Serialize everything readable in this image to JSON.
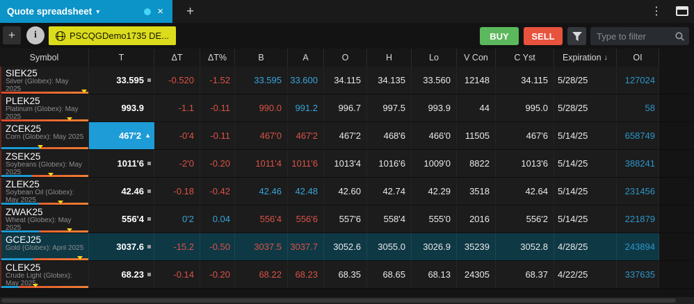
{
  "window": {
    "tab_title": "Quote spreadsheet",
    "account_button": "PSCQGDemo1735 DE..."
  },
  "toolbar": {
    "buy_label": "BUY",
    "sell_label": "SELL",
    "filter_placeholder": "Type to filter"
  },
  "icons": {
    "caret_down": "▾",
    "close": "×",
    "new_tab": "+",
    "kebab": "⋮",
    "add": "+",
    "info": "i",
    "sort_desc": "↓"
  },
  "colors": {
    "tab_accent": "#0c93c7",
    "buy_green": "#5cb85c",
    "sell_red": "#e8533e",
    "account_yellow": "#dcdc1d",
    "down_red": "#dc5247",
    "up_cyan": "#38a5da",
    "oi_cyan": "#2d96c9",
    "highlight_cell": "#1e9cd7",
    "selected_row": "#0f3845",
    "bar_cyan": "#1b9bd4",
    "bar_marker_yellow": "#ffd41f"
  },
  "table": {
    "columns": [
      "Symbol",
      "T",
      "ΔT",
      "ΔT%",
      "B",
      "A",
      "O",
      "H",
      "Lo",
      "V Con",
      "C Yst",
      "Expiration",
      "OI"
    ],
    "sorted_column": "Expiration",
    "rows": [
      {
        "symbol": "SIEK25",
        "description": "Silver (Globex): May 2025",
        "t": "33.595",
        "t_indicator": "square",
        "t_highlight": false,
        "selected": false,
        "dt": "-0.520",
        "dtp": "-1.52",
        "dt_dir": "down",
        "b": "33.595",
        "b_dir": "up",
        "a": "33.600",
        "a_dir": "up",
        "o": "34.115",
        "h": "34.135",
        "lo": "33.560",
        "vcon": "12148",
        "cyst": "34.115",
        "exp": "5/28/25",
        "oi": "127024",
        "bar": {
          "cyan_pct": 0,
          "marker_pct": 95
        }
      },
      {
        "symbol": "PLEK25",
        "description": "Platinum (Globex): May 2025",
        "t": "993.9",
        "t_indicator": "none",
        "t_highlight": false,
        "selected": false,
        "dt": "-1.1",
        "dtp": "-0.11",
        "dt_dir": "down",
        "b": "990.0",
        "b_dir": "down",
        "a": "991.2",
        "a_dir": "up",
        "o": "996.7",
        "h": "997.5",
        "lo": "993.9",
        "vcon": "44",
        "cyst": "995.0",
        "exp": "5/28/25",
        "oi": "58",
        "bar": {
          "cyan_pct": 0,
          "marker_pct": 78
        }
      },
      {
        "symbol": "ZCEK25",
        "description": "Corn (Globex): May 2025",
        "t": "467'2",
        "t_indicator": "triangle",
        "t_highlight": true,
        "selected": false,
        "dt": "-0'4",
        "dtp": "-0.11",
        "dt_dir": "down",
        "b": "467'0",
        "b_dir": "down",
        "a": "467'2",
        "a_dir": "down",
        "o": "467'2",
        "h": "468'6",
        "lo": "466'0",
        "vcon": "11505",
        "cyst": "467'6",
        "exp": "5/14/25",
        "oi": "658749",
        "bar": {
          "cyan_pct": 44,
          "marker_pct": 45
        }
      },
      {
        "symbol": "ZSEK25",
        "description": "Soybeans (Globex): May 2025",
        "t": "1011'6",
        "t_indicator": "square",
        "t_highlight": false,
        "selected": false,
        "dt": "-2'0",
        "dtp": "-0.20",
        "dt_dir": "down",
        "b": "1011'4",
        "b_dir": "down",
        "a": "1011'6",
        "a_dir": "down",
        "o": "1013'4",
        "h": "1016'6",
        "lo": "1009'0",
        "vcon": "8822",
        "cyst": "1013'6",
        "exp": "5/14/25",
        "oi": "388241",
        "bar": {
          "cyan_pct": 35,
          "marker_pct": 57
        }
      },
      {
        "symbol": "ZLEK25",
        "description": "Soybean Oil (Globex): May 2025",
        "t": "42.46",
        "t_indicator": "square",
        "t_highlight": false,
        "selected": false,
        "dt": "-0.18",
        "dtp": "-0.42",
        "dt_dir": "down",
        "b": "42.46",
        "b_dir": "up",
        "a": "42.48",
        "a_dir": "up",
        "o": "42.60",
        "h": "42.74",
        "lo": "42.29",
        "vcon": "3518",
        "cyst": "42.64",
        "exp": "5/14/25",
        "oi": "231456",
        "bar": {
          "cyan_pct": 43,
          "marker_pct": 68
        }
      },
      {
        "symbol": "ZWAK25",
        "description": "Wheat (Globex): May 2025",
        "t": "556'4",
        "t_indicator": "square",
        "t_highlight": false,
        "selected": false,
        "dt": "0'2",
        "dtp": "0.04",
        "dt_dir": "up",
        "b": "556'4",
        "b_dir": "down",
        "a": "556'6",
        "a_dir": "down",
        "o": "557'6",
        "h": "558'4",
        "lo": "555'0",
        "vcon": "2016",
        "cyst": "556'2",
        "exp": "5/14/25",
        "oi": "221879",
        "bar": {
          "cyan_pct": 44,
          "marker_pct": 78
        }
      },
      {
        "symbol": "GCEJ25",
        "description": "Gold (Globex): April 2025",
        "t": "3037.6",
        "t_indicator": "square",
        "t_highlight": false,
        "selected": true,
        "dt": "-15.2",
        "dtp": "-0.50",
        "dt_dir": "down",
        "b": "3037.5",
        "b_dir": "down",
        "a": "3037.7",
        "a_dir": "down",
        "o": "3052.6",
        "h": "3055.0",
        "lo": "3026.9",
        "vcon": "35239",
        "cyst": "3052.8",
        "exp": "4/28/25",
        "oi": "243894",
        "bar": {
          "cyan_pct": 37,
          "marker_pct": 90
        }
      },
      {
        "symbol": "CLEK25",
        "description": "Crude Light (Globex): May 2025",
        "t": "68.23",
        "t_indicator": "square",
        "t_highlight": false,
        "selected": false,
        "dt": "-0.14",
        "dtp": "-0.20",
        "dt_dir": "down",
        "b": "68.22",
        "b_dir": "down",
        "a": "68.23",
        "a_dir": "down",
        "o": "68.35",
        "h": "68.65",
        "lo": "68.13",
        "vcon": "24305",
        "cyst": "68.37",
        "exp": "4/22/25",
        "oi": "337635",
        "bar": {
          "cyan_pct": 20,
          "marker_pct": 39
        }
      }
    ]
  }
}
